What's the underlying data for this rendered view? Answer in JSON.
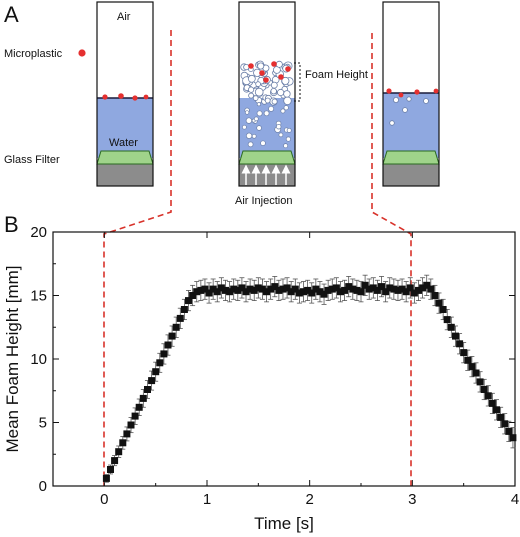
{
  "panels": {
    "a": "A",
    "b": "B"
  },
  "schematic": {
    "air": "Air",
    "microplastic": "Microplastic",
    "water": "Water",
    "glass_filter": "Glass Filter",
    "foam_height": "Foam Height",
    "air_injection": "Air Injection"
  },
  "colors": {
    "water": "#8fa8e0",
    "filter": "#9fd38a",
    "base": "#8c8c8c",
    "microplastic": "#e53030",
    "guide": "#d8322a",
    "marker": "#111111"
  },
  "chart_data": {
    "type": "scatter",
    "xlabel": "Time [s]",
    "ylabel": "Mean Foam Height [mm]",
    "xlim": [
      -0.5,
      4
    ],
    "ylim": [
      0,
      20
    ],
    "xticks": [
      0,
      1,
      2,
      3,
      4
    ],
    "yticks": [
      0,
      5,
      10,
      15,
      20
    ],
    "grid": false,
    "marker": "square",
    "error_bars": true,
    "guide_lines_at_x": [
      0,
      3
    ],
    "series": [
      {
        "x": [
          0.02,
          0.06,
          0.1,
          0.14,
          0.18,
          0.22,
          0.26,
          0.3,
          0.34,
          0.38,
          0.42,
          0.46,
          0.5,
          0.54,
          0.58,
          0.62,
          0.66,
          0.7,
          0.74,
          0.78,
          0.82,
          0.86,
          0.9,
          0.94,
          0.98,
          1.02,
          1.06,
          1.1,
          1.14,
          1.18,
          1.22,
          1.26,
          1.3,
          1.34,
          1.38,
          1.42,
          1.46,
          1.5,
          1.54,
          1.58,
          1.62,
          1.66,
          1.7,
          1.74,
          1.78,
          1.82,
          1.86,
          1.9,
          1.94,
          1.98,
          2.02,
          2.06,
          2.1,
          2.14,
          2.18,
          2.22,
          2.26,
          2.3,
          2.34,
          2.38,
          2.42,
          2.46,
          2.5,
          2.54,
          2.58,
          2.62,
          2.66,
          2.7,
          2.74,
          2.78,
          2.82,
          2.86,
          2.9,
          2.94,
          2.98,
          3.02,
          3.06,
          3.1,
          3.14,
          3.18,
          3.22,
          3.26,
          3.3,
          3.34,
          3.38,
          3.42,
          3.46,
          3.5,
          3.54,
          3.58,
          3.62,
          3.66,
          3.7,
          3.74,
          3.78,
          3.82,
          3.86,
          3.9,
          3.94,
          3.98
        ],
        "y": [
          0.6,
          1.3,
          2.0,
          2.7,
          3.4,
          4.1,
          4.8,
          5.5,
          6.2,
          6.9,
          7.6,
          8.3,
          9.0,
          9.7,
          10.4,
          11.1,
          11.8,
          12.5,
          13.2,
          13.9,
          14.6,
          15.0,
          15.3,
          15.4,
          15.5,
          15.2,
          15.5,
          15.3,
          15.6,
          15.4,
          15.3,
          15.5,
          15.4,
          15.6,
          15.3,
          15.5,
          15.4,
          15.6,
          15.5,
          15.3,
          15.5,
          15.7,
          15.4,
          15.5,
          15.6,
          15.3,
          15.5,
          15.2,
          15.3,
          15.4,
          15.2,
          15.5,
          15.3,
          15.1,
          15.4,
          15.5,
          15.6,
          15.3,
          15.4,
          15.7,
          15.5,
          15.4,
          15.3,
          15.8,
          15.5,
          15.6,
          15.4,
          15.7,
          15.3,
          15.6,
          15.5,
          15.4,
          15.5,
          15.3,
          15.6,
          15.2,
          15.4,
          15.6,
          15.8,
          15.5,
          15.0,
          14.4,
          13.9,
          13.1,
          12.5,
          11.8,
          11.2,
          10.5,
          9.9,
          9.4,
          8.9,
          8.2,
          7.6,
          7.1,
          6.5,
          6.0,
          5.4,
          4.9,
          4.3,
          3.8
        ],
        "err": [
          0.3,
          0.35,
          0.4,
          0.45,
          0.5,
          0.55,
          0.6,
          0.65,
          0.65,
          0.7,
          0.7,
          0.75,
          0.75,
          0.75,
          0.8,
          0.8,
          0.8,
          0.8,
          0.8,
          0.8,
          0.8,
          0.8,
          0.8,
          0.8,
          0.8,
          0.8,
          0.8,
          0.8,
          0.8,
          0.8,
          0.8,
          0.8,
          0.8,
          0.8,
          0.8,
          0.8,
          0.8,
          0.8,
          0.8,
          0.8,
          0.8,
          0.8,
          0.8,
          0.8,
          0.8,
          0.8,
          0.8,
          0.8,
          0.8,
          0.8,
          0.8,
          0.8,
          0.8,
          0.8,
          0.8,
          0.8,
          0.8,
          0.8,
          0.8,
          0.8,
          0.8,
          0.8,
          0.8,
          0.8,
          0.8,
          0.8,
          0.8,
          0.8,
          0.8,
          0.8,
          0.8,
          0.8,
          0.8,
          0.8,
          0.8,
          0.8,
          0.8,
          0.8,
          0.8,
          0.8,
          0.8,
          0.8,
          0.8,
          0.8,
          0.8,
          0.8,
          0.8,
          0.8,
          0.8,
          0.8,
          0.8,
          0.8,
          0.8,
          0.8,
          0.8,
          0.8,
          0.8,
          0.8,
          0.8,
          0.8
        ]
      }
    ]
  }
}
